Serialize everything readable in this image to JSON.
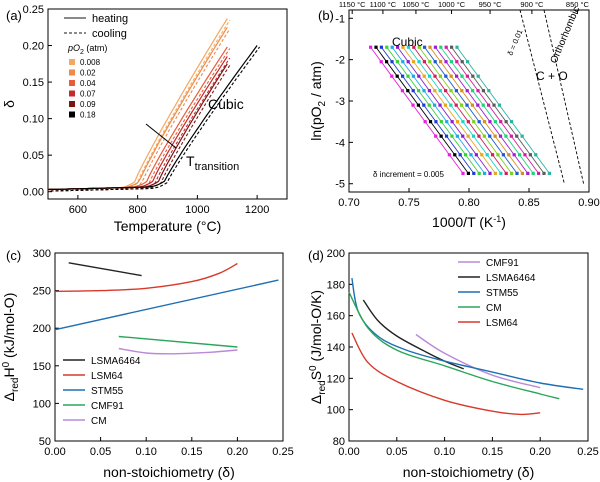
{
  "chart_data": [
    {
      "panel": "(a)",
      "type": "line",
      "xlabel": "Temperature (°C)",
      "ylabel": "δ",
      "xlim": [
        500,
        1300
      ],
      "ylim": [
        -0.01,
        0.25
      ],
      "xticks": [
        "600",
        "800",
        "1000",
        "1200"
      ],
      "yticks": [
        "0.00",
        "0.05",
        "0.10",
        "0.15",
        "0.20",
        "0.25"
      ],
      "legend_lines": [
        {
          "label": "heating",
          "dash": "solid"
        },
        {
          "label": "cooling",
          "dash": "dashed"
        }
      ],
      "legend_title": "pO",
      "legend_title_sub": "2",
      "legend_title_suffix": "(atm)",
      "annotations": {
        "phase": "Cubic",
        "transition": "T",
        "transition_sub": "transition"
      },
      "series": [
        {
          "name": "0.008",
          "color": "#f4a860",
          "onset": 790,
          "end": [
            1100,
            0.237
          ]
        },
        {
          "name": "0.02",
          "color": "#ee8a4a",
          "onset": 805,
          "end": [
            1100,
            0.225
          ]
        },
        {
          "name": "0.04",
          "color": "#e85c3a",
          "onset": 830,
          "end": [
            1100,
            0.198
          ]
        },
        {
          "name": "0.07",
          "color": "#c62a2a",
          "onset": 850,
          "end": [
            1100,
            0.185
          ]
        },
        {
          "name": "0.09",
          "color": "#7a1515",
          "onset": 870,
          "end": [
            1100,
            0.175
          ]
        },
        {
          "name": "0.18",
          "color": "#000000",
          "onset": 890,
          "end": [
            1200,
            0.2
          ]
        }
      ]
    },
    {
      "panel": "(b)",
      "type": "scatter",
      "xlabel": "1000/T (K",
      "xlabel_sup": "-1",
      "xlabel_suffix": ")",
      "ylabel": "ln(pO",
      "ylabel_sub": "2",
      "ylabel_suffix": " / atm)",
      "xlim": [
        0.7,
        0.9
      ],
      "ylim": [
        -5.2,
        -0.8
      ],
      "xticks": [
        "0.70",
        "0.75",
        "0.80",
        "0.85",
        "0.90"
      ],
      "yticks": [
        "-1",
        "-2",
        "-3",
        "-4",
        "-5"
      ],
      "top_ticks": [
        "1150 °C",
        "1100 °C",
        "1050 °C",
        "1000 °C",
        "950 °C",
        "900 °C",
        "850 °C"
      ],
      "top_tick_temps_C": [
        1150,
        1100,
        1050,
        1000,
        950,
        900,
        850
      ],
      "annotations": {
        "cubic": "Cubic",
        "mixed": "C + O",
        "ortho": "Orthorhombic",
        "boundary": "δ = 0.01",
        "increment": "δ increment = 0.005"
      },
      "ln_po2_levels": [
        -1.7,
        -2.05,
        -2.4,
        -2.75,
        -3.1,
        -3.5,
        -3.85,
        -4.3,
        -4.75
      ],
      "first_line_x": [
        0.718,
        0.795
      ],
      "line_spacing": 0.0045,
      "line_count": 17,
      "colors": [
        "#e81ee0",
        "#000000",
        "#1e3cd2",
        "#3ad03a",
        "#1ea8e8",
        "#8c1ed2",
        "#e8a81e",
        "#1ed2c8",
        "#d21e5a",
        "#7ad21e",
        "#1e5ad2",
        "#d2901e",
        "#a01ed2",
        "#1ed27a",
        "#d21ea0",
        "#5a5a5a",
        "#28b4a0"
      ],
      "boundaries": [
        {
          "name": "δ = 0.01",
          "from": [
            0.8425,
            -0.8
          ],
          "to": [
            0.8795,
            -5.0
          ]
        },
        {
          "name": "orthorhombic",
          "from": [
            0.8625,
            -0.8
          ],
          "to": [
            0.8955,
            -5.0
          ]
        }
      ]
    },
    {
      "panel": "(c)",
      "type": "line",
      "xlabel": "non-stoichiometry (δ)",
      "ylabel": "Δ",
      "ylabel_sub": "red",
      "ylabel_mid": "H",
      "ylabel_sup": "0",
      "ylabel_suffix": " (kJ/mol-O)",
      "xlim": [
        0,
        0.25
      ],
      "ylim": [
        50,
        300
      ],
      "xticks": [
        "0.00",
        "0.05",
        "0.10",
        "0.15",
        "0.20",
        "0.25"
      ],
      "yticks": [
        "50",
        "100",
        "150",
        "200",
        "250",
        "300"
      ],
      "series": [
        {
          "name": "LSMA6464",
          "color": "#222222",
          "x": [
            0.015,
            0.095
          ],
          "y": [
            287,
            270
          ]
        },
        {
          "name": "LSM64",
          "color": "#d8392b",
          "x": [
            0.0,
            0.05,
            0.1,
            0.15,
            0.18,
            0.2
          ],
          "y": [
            249,
            250,
            253,
            262,
            273,
            286
          ]
        },
        {
          "name": "STM55",
          "color": "#1f6fb4",
          "x": [
            0.0,
            0.245
          ],
          "y": [
            198,
            264
          ]
        },
        {
          "name": "CMF91",
          "color": "#2aa55a",
          "x": [
            0.07,
            0.2
          ],
          "y": [
            189,
            175
          ]
        },
        {
          "name": "CM",
          "color": "#b88ad8",
          "x": [
            0.07,
            0.1,
            0.13,
            0.17,
            0.2
          ],
          "y": [
            173,
            167,
            166,
            168,
            171
          ]
        }
      ]
    },
    {
      "panel": "(d)",
      "type": "line",
      "xlabel": "non-stoichiometry (δ)",
      "ylabel": "Δ",
      "ylabel_sub": "red",
      "ylabel_mid": "S",
      "ylabel_sup": "0",
      "ylabel_suffix": " (J/mol-O/K)",
      "xlim": [
        0,
        0.25
      ],
      "ylim": [
        80,
        200
      ],
      "xticks": [
        "0.00",
        "0.05",
        "0.10",
        "0.15",
        "0.20",
        "0.25"
      ],
      "yticks": [
        "80",
        "100",
        "120",
        "140",
        "160",
        "180",
        "200"
      ],
      "series": [
        {
          "name": "CMF91",
          "color": "#b88ad8",
          "x": [
            0.07,
            0.1,
            0.15,
            0.2
          ],
          "y": [
            148,
            136,
            122,
            114
          ]
        },
        {
          "name": "LSMA6464",
          "color": "#222222",
          "x": [
            0.015,
            0.03,
            0.05,
            0.08,
            0.1,
            0.12
          ],
          "y": [
            170,
            157,
            147,
            137,
            131,
            126
          ]
        },
        {
          "name": "STM55",
          "color": "#1f6fb4",
          "x": [
            0.003,
            0.01,
            0.03,
            0.06,
            0.1,
            0.15,
            0.2,
            0.245
          ],
          "y": [
            184,
            162,
            147,
            138,
            131,
            124,
            117,
            113
          ]
        },
        {
          "name": "CM",
          "color": "#2aa55a",
          "x": [
            0.0,
            0.02,
            0.05,
            0.1,
            0.15,
            0.2,
            0.22
          ],
          "y": [
            175,
            152,
            138,
            128,
            118,
            110,
            107
          ]
        },
        {
          "name": "LSM64",
          "color": "#d8392b",
          "x": [
            0.003,
            0.02,
            0.05,
            0.1,
            0.15,
            0.18,
            0.2
          ],
          "y": [
            149,
            130,
            118,
            106,
            99,
            97,
            98
          ]
        }
      ]
    }
  ]
}
